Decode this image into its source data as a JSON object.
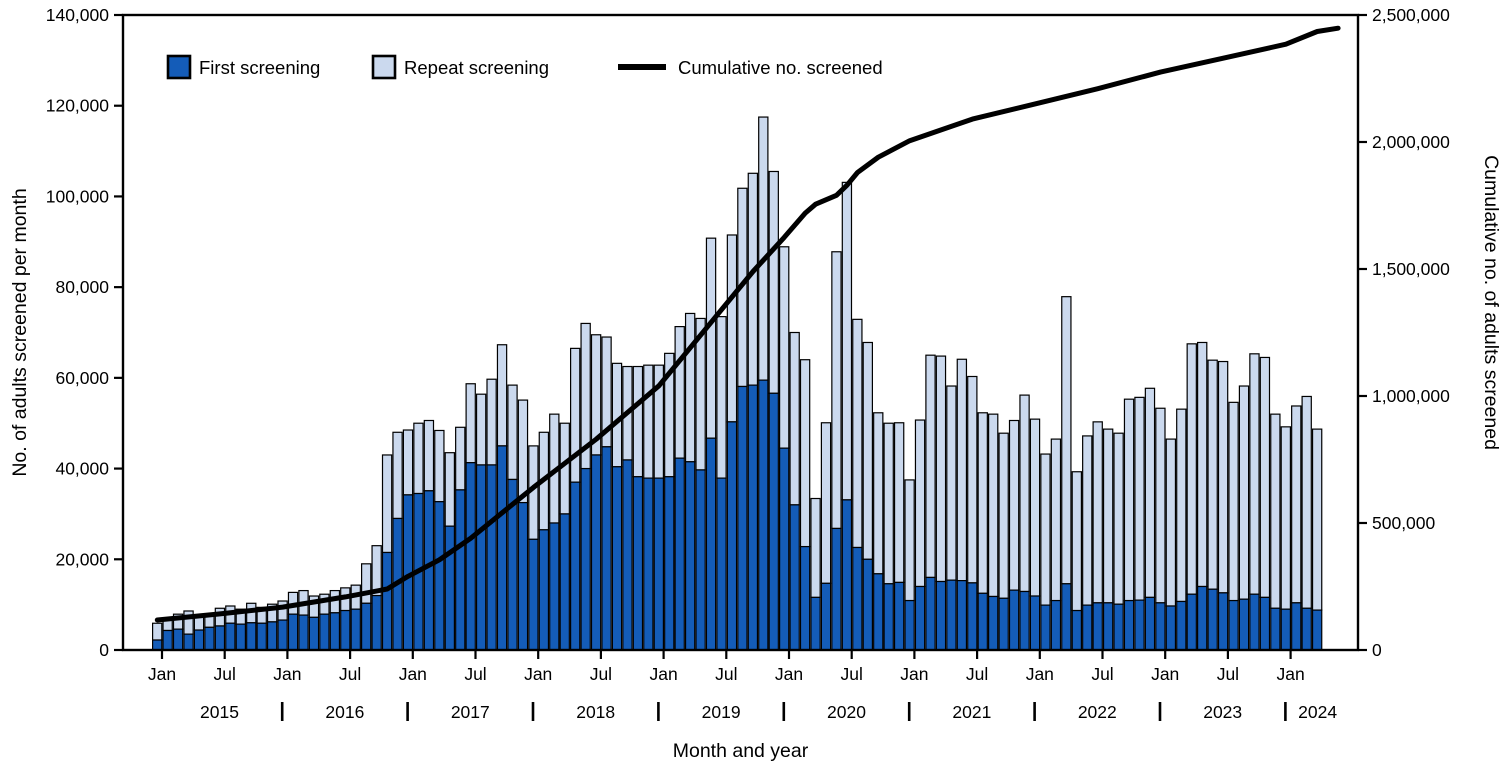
{
  "figure": {
    "x_axis_title": "Month and year",
    "left_axis_title": "No. of adults screened per month",
    "right_axis_title": "Cumulative no. of adults screened"
  },
  "legend": {
    "first_label": "First screening",
    "repeat_label": "Repeat screening",
    "line_label": "Cumulative no. screened"
  },
  "colors": {
    "first": "#145CB8",
    "repeat": "#CBD9EE",
    "line": "#000000",
    "axis": "#000000",
    "background": "#FFFFFF"
  },
  "chart_data": {
    "type": "bar",
    "subtype": "stacked-monthly-bars-with-cumulative-line",
    "months": [
      "2015-01",
      "2015-02",
      "2015-03",
      "2015-04",
      "2015-05",
      "2015-06",
      "2015-07",
      "2015-08",
      "2015-09",
      "2015-10",
      "2015-11",
      "2015-12",
      "2016-01",
      "2016-02",
      "2016-03",
      "2016-04",
      "2016-05",
      "2016-06",
      "2016-07",
      "2016-08",
      "2016-09",
      "2016-10",
      "2016-11",
      "2016-12",
      "2017-01",
      "2017-02",
      "2017-03",
      "2017-04",
      "2017-05",
      "2017-06",
      "2017-07",
      "2017-08",
      "2017-09",
      "2017-10",
      "2017-11",
      "2017-12",
      "2018-01",
      "2018-02",
      "2018-03",
      "2018-04",
      "2018-05",
      "2018-06",
      "2018-07",
      "2018-08",
      "2018-09",
      "2018-10",
      "2018-11",
      "2018-12",
      "2019-01",
      "2019-02",
      "2019-03",
      "2019-04",
      "2019-05",
      "2019-06",
      "2019-07",
      "2019-08",
      "2019-09",
      "2019-10",
      "2019-11",
      "2019-12",
      "2020-01",
      "2020-02",
      "2020-03",
      "2020-04",
      "2020-05",
      "2020-06",
      "2020-07",
      "2020-08",
      "2020-09",
      "2020-10",
      "2020-11",
      "2020-12",
      "2021-01",
      "2021-02",
      "2021-03",
      "2021-04",
      "2021-05",
      "2021-06",
      "2021-07",
      "2021-08",
      "2021-09",
      "2021-10",
      "2021-11",
      "2021-12",
      "2022-01",
      "2022-02",
      "2022-03",
      "2022-04",
      "2022-05",
      "2022-06",
      "2022-07",
      "2022-08",
      "2022-09",
      "2022-10",
      "2022-11",
      "2022-12",
      "2023-01",
      "2023-02",
      "2023-03",
      "2023-04",
      "2023-05",
      "2023-06",
      "2023-07",
      "2023-08",
      "2023-09",
      "2023-10",
      "2023-11",
      "2023-12",
      "2024-01",
      "2024-02",
      "2024-03",
      "2024-04"
    ],
    "series": [
      {
        "name": "First screening",
        "values": [
          2200,
          4300,
          4600,
          3500,
          4400,
          5000,
          5300,
          5900,
          5700,
          6000,
          5900,
          6200,
          6600,
          7900,
          7700,
          7200,
          7900,
          8200,
          8700,
          9000,
          10300,
          12000,
          21500,
          29000,
          34200,
          34500,
          35100,
          32700,
          27300,
          35300,
          41300,
          40800,
          40800,
          45000,
          37600,
          32500,
          24400,
          26500,
          28000,
          30000,
          37000,
          40000,
          43000,
          44800,
          40400,
          41900,
          38200,
          37900,
          37900,
          38200,
          42300,
          41500,
          39700,
          46700,
          37900,
          50300,
          58100,
          58400,
          59500,
          56600,
          44500,
          32000,
          22800,
          11600,
          14700,
          26800,
          33100,
          22600,
          20000,
          16800,
          14600,
          14900,
          10900,
          14000,
          16000,
          15100,
          15400,
          15300,
          14800,
          12500,
          11800,
          11400,
          13200,
          12900,
          11900,
          9900,
          10900,
          14600,
          8700,
          9900,
          10400,
          10400,
          10100,
          10900,
          11000,
          11600,
          10400,
          9700,
          10700,
          12300,
          14000,
          13400,
          12600,
          10900,
          11200,
          12300,
          11600,
          9200,
          9000,
          10400,
          9200,
          8800
        ]
      },
      {
        "name": "Repeat screening",
        "values": [
          3700,
          2500,
          3300,
          5100,
          3100,
          2900,
          3900,
          3800,
          3300,
          4300,
          3500,
          3900,
          4200,
          4800,
          5400,
          4700,
          4400,
          4900,
          5000,
          5300,
          8700,
          11000,
          21500,
          19000,
          14300,
          15500,
          15500,
          15700,
          16200,
          13800,
          17400,
          15600,
          18900,
          22300,
          20800,
          22600,
          20600,
          21500,
          24000,
          20000,
          29500,
          32000,
          26500,
          24200,
          22800,
          20600,
          24300,
          24900,
          24900,
          27200,
          29000,
          32700,
          33400,
          44100,
          35600,
          41200,
          43700,
          46700,
          58000,
          48900,
          44400,
          38000,
          41200,
          21800,
          35400,
          61000,
          70000,
          50300,
          47800,
          35500,
          35400,
          35200,
          26600,
          36700,
          49000,
          49700,
          42800,
          48800,
          45500,
          39800,
          40200,
          36400,
          37400,
          43300,
          39000,
          33300,
          35600,
          63300,
          30600,
          37300,
          39900,
          38300,
          37700,
          44400,
          44700,
          46100,
          42900,
          36800,
          42400,
          55200,
          53800,
          50500,
          51000,
          43700,
          47000,
          53000,
          52900,
          42800,
          40200,
          43400,
          46700,
          39900
        ]
      }
    ],
    "cumulative_line": {
      "name": "Cumulative no. screened",
      "anchors_month_value": [
        [
          0,
          118000
        ],
        [
          6,
          142000
        ],
        [
          12,
          169000
        ],
        [
          18,
          209000
        ],
        [
          22,
          240000
        ],
        [
          24,
          290000
        ],
        [
          27,
          355000
        ],
        [
          30,
          440000
        ],
        [
          33,
          540000
        ],
        [
          36,
          640000
        ],
        [
          39,
          735000
        ],
        [
          42,
          830000
        ],
        [
          45,
          935000
        ],
        [
          48,
          1040000
        ],
        [
          51,
          1190000
        ],
        [
          54,
          1340000
        ],
        [
          57,
          1490000
        ],
        [
          60,
          1625000
        ],
        [
          62,
          1720000
        ],
        [
          63,
          1755000
        ],
        [
          65,
          1790000
        ],
        [
          66,
          1830000
        ],
        [
          67,
          1880000
        ],
        [
          69,
          1940000
        ],
        [
          72,
          2005000
        ],
        [
          78,
          2090000
        ],
        [
          84,
          2150000
        ],
        [
          90,
          2210000
        ],
        [
          96,
          2275000
        ],
        [
          102,
          2330000
        ],
        [
          108,
          2385000
        ],
        [
          111,
          2435000
        ],
        [
          113,
          2448000
        ]
      ]
    },
    "title": "",
    "xlabel": "Month and year",
    "ylabel_left": "No. of adults screened per month",
    "ylabel_right": "Cumulative no. of adults screened",
    "left_axis": {
      "min": 0,
      "max": 140000,
      "step": 20000,
      "tick_labels": [
        "0",
        "20,000",
        "40,000",
        "60,000",
        "80,000",
        "100,000",
        "120,000",
        "140,000"
      ]
    },
    "right_axis": {
      "min": 0,
      "max": 2500000,
      "step": 500000,
      "tick_labels": [
        "0",
        "500,000",
        "1,000,000",
        "1,500,000",
        "2,000,000",
        "2,500,000"
      ]
    },
    "x_axis": {
      "month_tick_labels": [
        "Jan",
        "Jul"
      ],
      "years": [
        "2015",
        "2016",
        "2017",
        "2018",
        "2019",
        "2020",
        "2021",
        "2022",
        "2023",
        "2024"
      ]
    },
    "grid": false,
    "legend_position": "top-left-inside"
  }
}
